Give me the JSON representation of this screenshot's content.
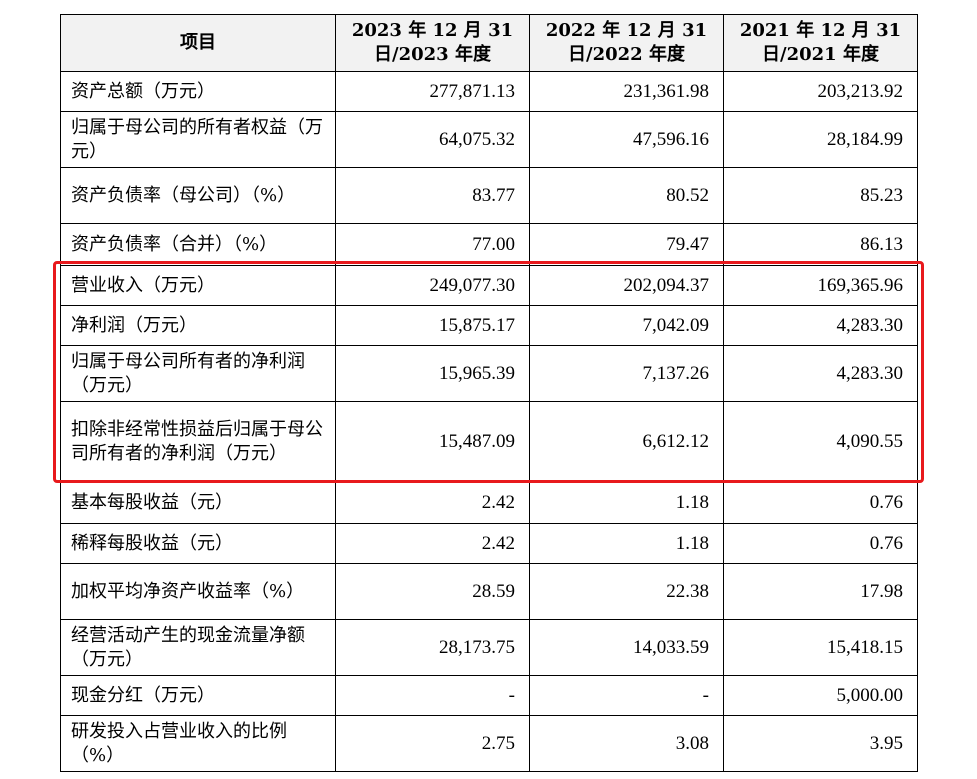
{
  "table": {
    "headers": [
      "项目",
      "2023 年 12 月 31 日/2023 年度",
      "2022 年 12 月 31 日/2022 年度",
      "2021 年 12 月 31 日/2021 年度"
    ],
    "rows": [
      {
        "label": "资产总额（万元）",
        "values": [
          "277,871.13",
          "231,361.98",
          "203,213.92"
        ]
      },
      {
        "label": "归属于母公司的所有者权益（万元）",
        "values": [
          "64,075.32",
          "47,596.16",
          "28,184.99"
        ]
      },
      {
        "label": "资产负债率（母公司）（%）",
        "values": [
          "83.77",
          "80.52",
          "85.23"
        ]
      },
      {
        "label": "资产负债率（合并）（%）",
        "values": [
          "77.00",
          "79.47",
          "86.13"
        ]
      },
      {
        "label": "营业收入（万元）",
        "values": [
          "249,077.30",
          "202,094.37",
          "169,365.96"
        ]
      },
      {
        "label": "净利润（万元）",
        "values": [
          "15,875.17",
          "7,042.09",
          "4,283.30"
        ]
      },
      {
        "label": "归属于母公司所有者的净利润（万元）",
        "values": [
          "15,965.39",
          "7,137.26",
          "4,283.30"
        ]
      },
      {
        "label": "扣除非经常性损益后归属于母公司所有者的净利润（万元）",
        "values": [
          "15,487.09",
          "6,612.12",
          "4,090.55"
        ]
      },
      {
        "label": "基本每股收益（元）",
        "values": [
          "2.42",
          "1.18",
          "0.76"
        ]
      },
      {
        "label": "稀释每股收益（元）",
        "values": [
          "2.42",
          "1.18",
          "0.76"
        ]
      },
      {
        "label": "加权平均净资产收益率（%）",
        "values": [
          "28.59",
          "22.38",
          "17.98"
        ]
      },
      {
        "label": "经营活动产生的现金流量净额（万元）",
        "values": [
          "28,173.75",
          "14,033.59",
          "15,418.15"
        ]
      },
      {
        "label": "现金分红（万元）",
        "values": [
          "-",
          "-",
          "5,000.00"
        ]
      },
      {
        "label": "研发投入占营业收入的比例（%）",
        "values": [
          "2.75",
          "3.08",
          "3.95"
        ]
      }
    ]
  },
  "highlight_color": "#e8191c"
}
